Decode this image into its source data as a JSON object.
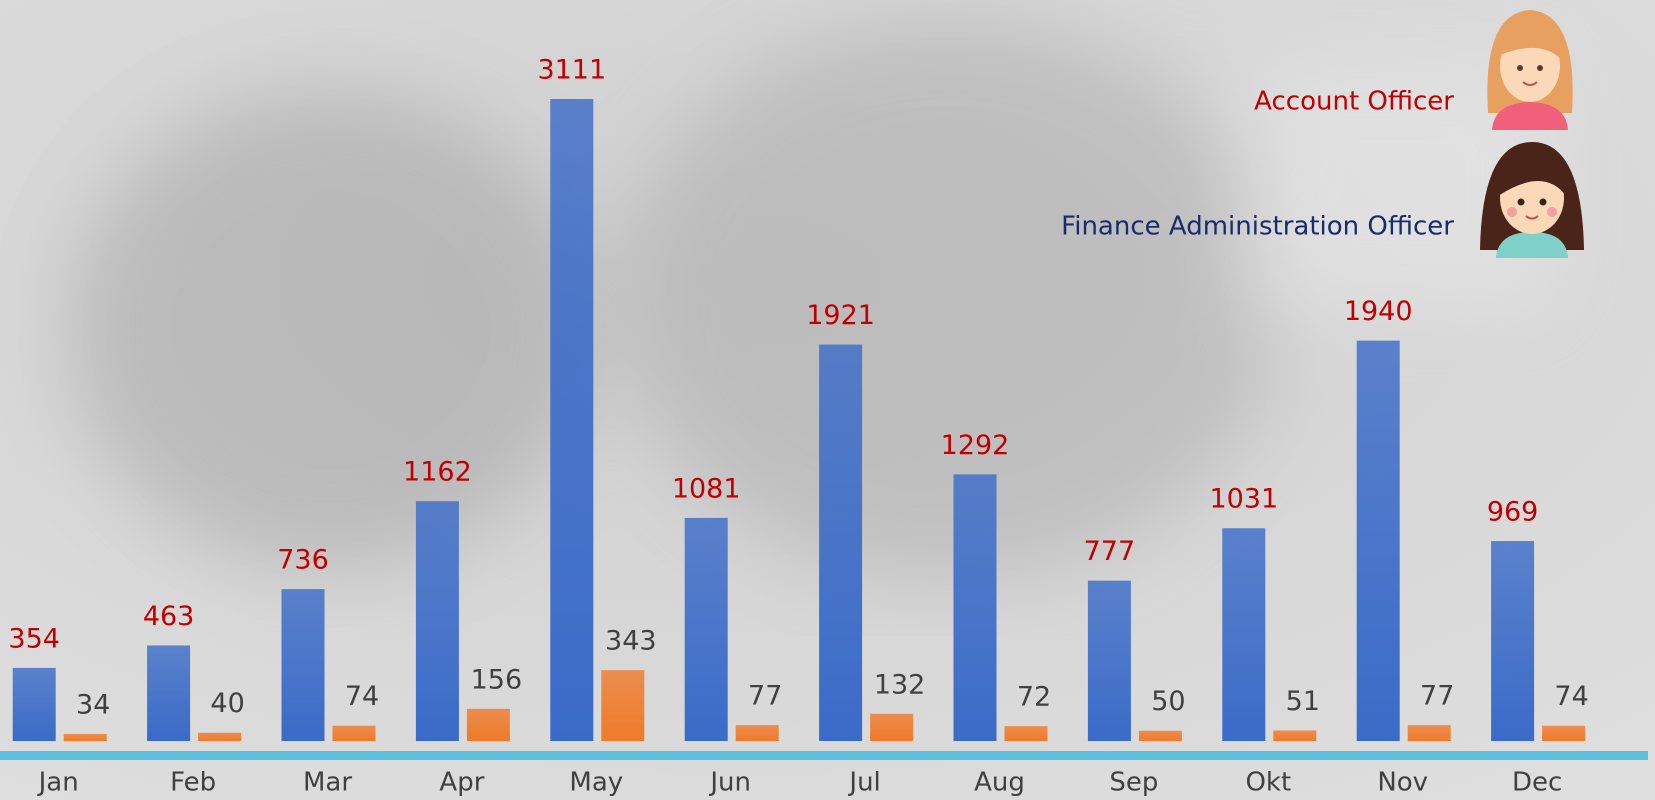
{
  "chart_data": {
    "type": "bar",
    "categories": [
      "Jan",
      "Feb",
      "Mar",
      "Apr",
      "May",
      "Jun",
      "Jul",
      "Aug",
      "Sep",
      "Okt",
      "Nov",
      "Dec"
    ],
    "series": [
      {
        "name": "Account Officer",
        "color": "#3a6bc8",
        "label_color": "#c00000",
        "legend_color": "#c00000",
        "values": [
          354,
          463,
          736,
          1162,
          3111,
          1081,
          1921,
          1292,
          777,
          1031,
          1940,
          969
        ]
      },
      {
        "name": "Finance Administration Officer",
        "color": "#f07a2a",
        "label_color": "#404040",
        "legend_color": "#1a2a6c",
        "values": [
          34,
          40,
          74,
          156,
          343,
          77,
          132,
          72,
          50,
          51,
          77,
          74
        ]
      }
    ]
  }
}
